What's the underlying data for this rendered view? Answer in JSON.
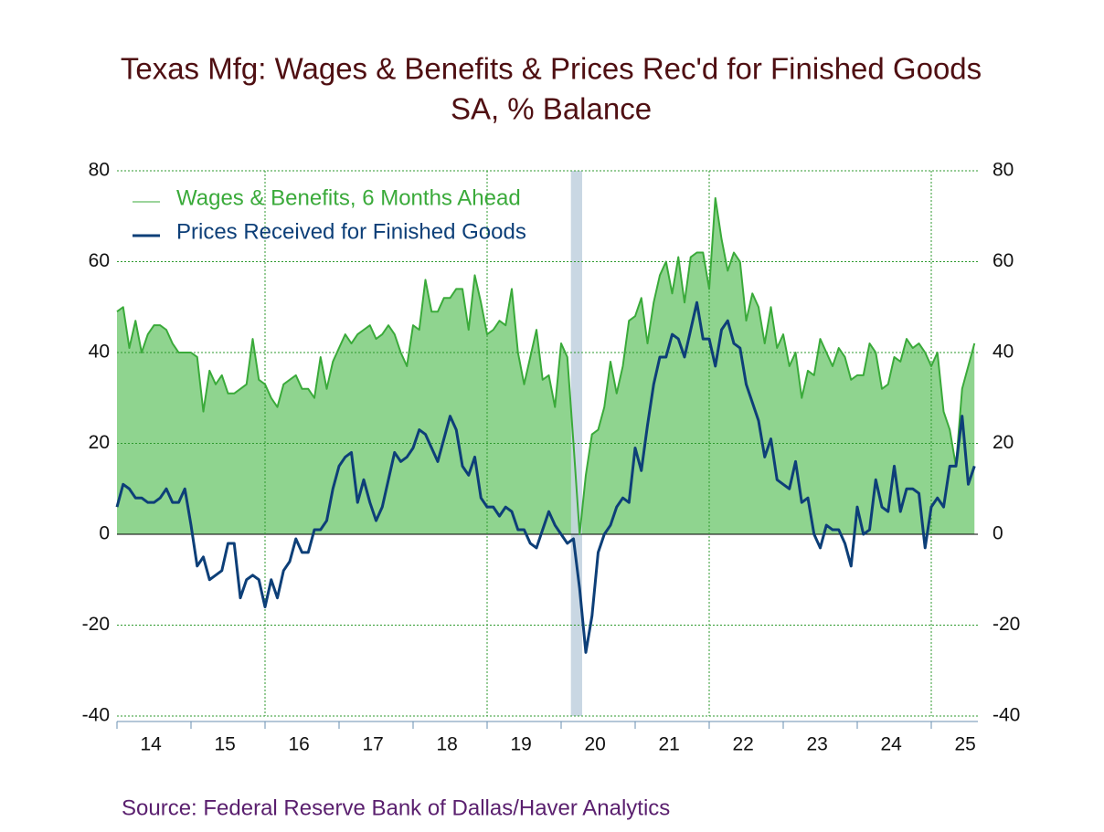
{
  "chart_data": {
    "type": "line",
    "title": "Texas Mfg: Wages & Benefits & Prices Rec'd for Finished Goods",
    "subtitle": "SA, % Balance",
    "source": "Source:  Federal Reserve Bank of Dallas/Haver Analytics",
    "categories": [
      null,
      null,
      null,
      null,
      null,
      null,
      "14",
      null,
      null,
      null,
      null,
      null,
      null,
      null,
      null,
      null,
      null,
      null,
      "15",
      null,
      null,
      null,
      null,
      null,
      null,
      null,
      null,
      null,
      null,
      null,
      "16",
      null,
      null,
      null,
      null,
      null,
      null,
      null,
      null,
      null,
      null,
      null,
      "17",
      null,
      null,
      null,
      null,
      null,
      null,
      null,
      null,
      null,
      null,
      null,
      "18",
      null,
      null,
      null,
      null,
      null,
      null,
      null,
      null,
      null,
      null,
      null,
      "19",
      null,
      null,
      null,
      null,
      null,
      null,
      null,
      null,
      null,
      null,
      null,
      "20",
      null,
      null,
      null,
      null,
      null,
      null,
      null,
      null,
      null,
      null,
      null,
      "21",
      null,
      null,
      null,
      null,
      null,
      null,
      null,
      null,
      null,
      null,
      null,
      "22",
      null,
      null,
      null,
      null,
      null,
      null,
      null,
      null,
      null,
      null,
      null,
      "23",
      null,
      null,
      null,
      null,
      null,
      null,
      null,
      null,
      null,
      null,
      null,
      "24",
      null,
      null,
      null,
      null,
      null,
      null,
      null,
      null,
      null,
      null,
      null,
      "25",
      null
    ],
    "series": [
      {
        "name": "Wages & Benefits, 6 Months Ahead",
        "color": "#3aaa3a",
        "fill": "#8fd48f",
        "values": [
          49,
          50,
          41,
          47,
          40,
          44,
          46,
          46,
          45,
          42,
          40,
          40,
          40,
          39,
          27,
          36,
          33,
          35,
          31,
          31,
          32,
          33,
          43,
          34,
          33,
          30,
          28,
          33,
          34,
          35,
          32,
          32,
          30,
          39,
          32,
          38,
          41,
          44,
          42,
          44,
          45,
          46,
          43,
          44,
          46,
          44,
          40,
          37,
          46,
          45,
          56,
          49,
          49,
          52,
          52,
          54,
          54,
          45,
          57,
          51,
          44,
          45,
          47,
          46,
          54,
          40,
          33,
          39,
          45,
          34,
          35,
          28,
          42,
          39,
          20,
          0,
          13,
          22,
          23,
          28,
          38,
          31,
          37,
          47,
          48,
          52,
          42,
          51,
          57,
          60,
          53,
          61,
          51,
          61,
          62,
          62,
          54,
          74,
          65,
          58,
          62,
          60,
          47,
          53,
          50,
          42,
          50,
          41,
          44,
          37,
          40,
          30,
          36,
          35,
          43,
          40,
          37,
          41,
          39,
          34,
          35,
          35,
          42,
          40,
          32,
          33,
          39,
          38,
          43,
          41,
          42,
          40,
          37,
          40,
          27,
          23,
          15,
          32,
          37,
          42
        ]
      },
      {
        "name": "Prices Received for Finished Goods",
        "color": "#0d3f78",
        "values": [
          6,
          11,
          10,
          8,
          8,
          7,
          7,
          8,
          10,
          7,
          7,
          10,
          2,
          -7,
          -5,
          -10,
          -9,
          -8,
          -2,
          -2,
          -14,
          -10,
          -9,
          -10,
          -16,
          -10,
          -14,
          -8,
          -6,
          -1,
          -4,
          -4,
          1,
          1,
          3,
          10,
          15,
          17,
          18,
          7,
          12,
          7,
          3,
          6,
          12,
          18,
          16,
          17,
          19,
          23,
          22,
          19,
          16,
          21,
          26,
          23,
          15,
          13,
          17,
          8,
          6,
          6,
          4,
          6,
          5,
          1,
          1,
          -2,
          -3,
          1,
          5,
          2,
          0,
          -2,
          -1,
          -12,
          -26,
          -18,
          -4,
          0,
          2,
          6,
          8,
          7,
          19,
          14,
          24,
          33,
          39,
          39,
          44,
          43,
          39,
          45,
          51,
          43,
          43,
          37,
          45,
          47,
          42,
          41,
          33,
          29,
          25,
          17,
          21,
          12,
          11,
          10,
          16,
          7,
          8,
          0,
          -3,
          2,
          1,
          1,
          -2,
          -7,
          6,
          0,
          1,
          12,
          6,
          5,
          15,
          5,
          10,
          10,
          9,
          -3,
          6,
          8,
          6,
          15,
          15,
          26,
          11,
          15
        ]
      }
    ],
    "ylim": [
      -40,
      80
    ],
    "yticks": [
      -40,
      -20,
      0,
      20,
      40,
      60,
      80
    ],
    "grid": true,
    "legend": "upper-left"
  }
}
